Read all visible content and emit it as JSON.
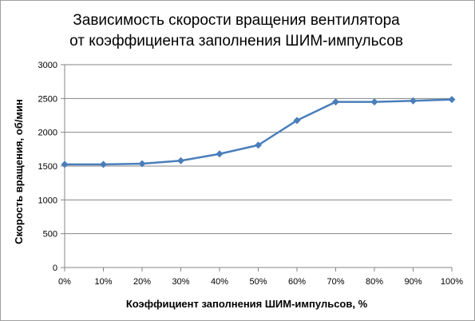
{
  "chart_data": {
    "type": "line",
    "title": [
      "Зависимость скорости вращения вентилятора",
      "от коэффициента  заполнения ШИМ-импульсов"
    ],
    "xlabel": "Коэффициент заполнения ШИМ-импульсов, %",
    "ylabel": "Скорость вращения, об/мин",
    "x": [
      "0%",
      "10%",
      "20%",
      "30%",
      "40%",
      "50%",
      "60%",
      "70%",
      "80%",
      "90%",
      "100%"
    ],
    "y_ticks": [
      "0",
      "500",
      "1000",
      "1500",
      "2000",
      "2500",
      "3000"
    ],
    "ylim": [
      0,
      3000
    ],
    "grid": true,
    "legend": "none",
    "series": [
      {
        "values": [
          1525,
          1525,
          1535,
          1580,
          1680,
          1810,
          2175,
          2450,
          2450,
          2465,
          2485
        ],
        "color": "#4a7ebb",
        "marker": "diamond"
      }
    ]
  }
}
